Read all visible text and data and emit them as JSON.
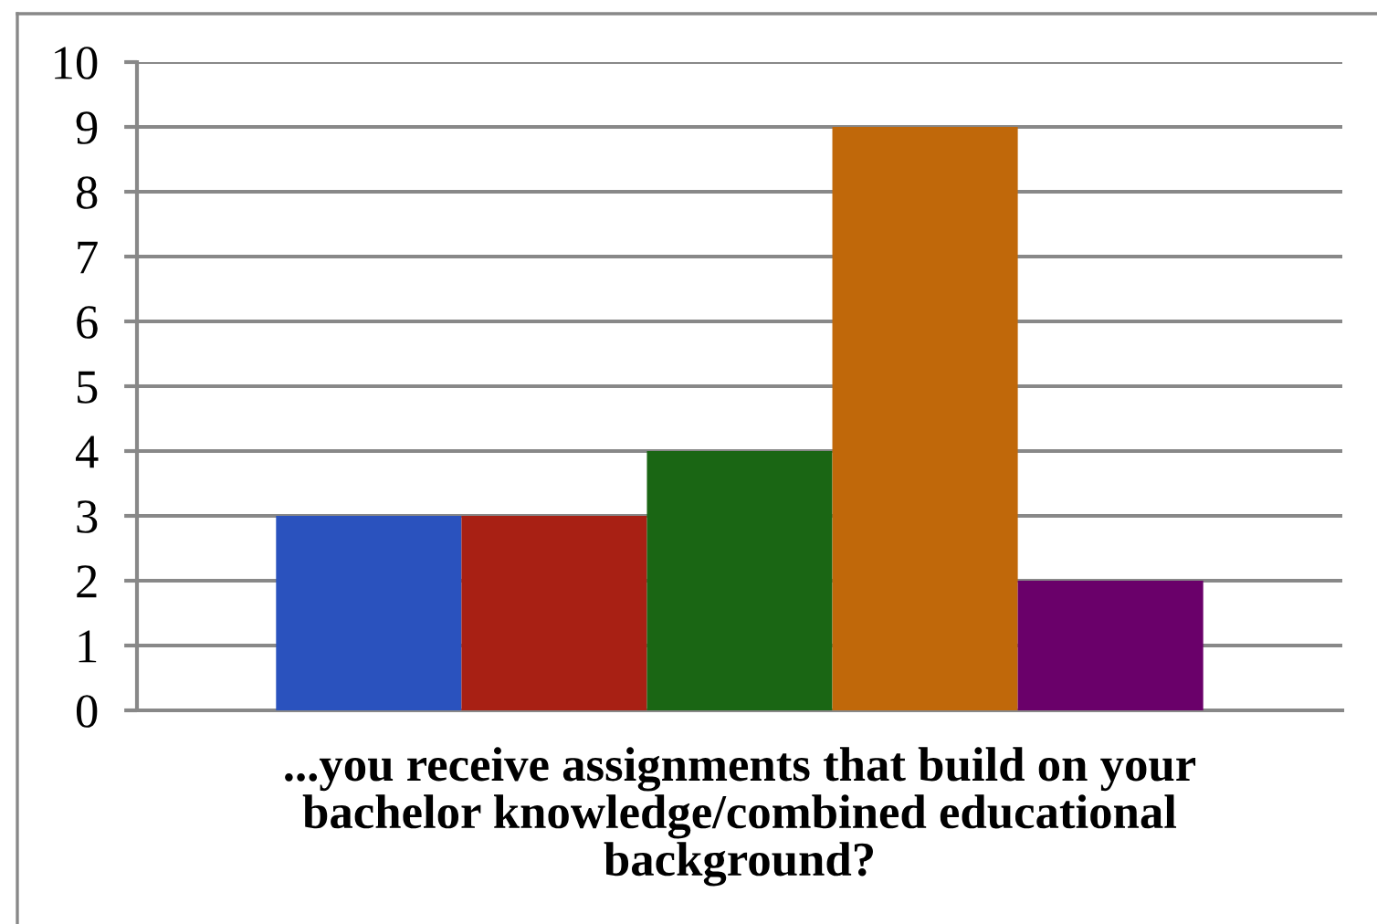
{
  "chart_data": {
    "type": "bar",
    "xlabel": "...you receive assignments that build on your\nbachelor knowledge/combined educational\nbackground?",
    "categories": [
      null
    ],
    "series": [
      {
        "color": "#2a52be",
        "values": [
          3
        ]
      },
      {
        "color": "#a82014",
        "values": [
          3
        ]
      },
      {
        "color": "#1a6614",
        "values": [
          4
        ]
      },
      {
        "color": "#c0680a",
        "values": [
          9
        ]
      },
      {
        "color": "#6a006a",
        "values": [
          2
        ]
      }
    ],
    "ylim": [
      0,
      10
    ],
    "yticks": [
      0,
      1,
      2,
      3,
      4,
      5,
      6,
      7,
      8,
      9,
      10
    ],
    "grid": "y"
  }
}
